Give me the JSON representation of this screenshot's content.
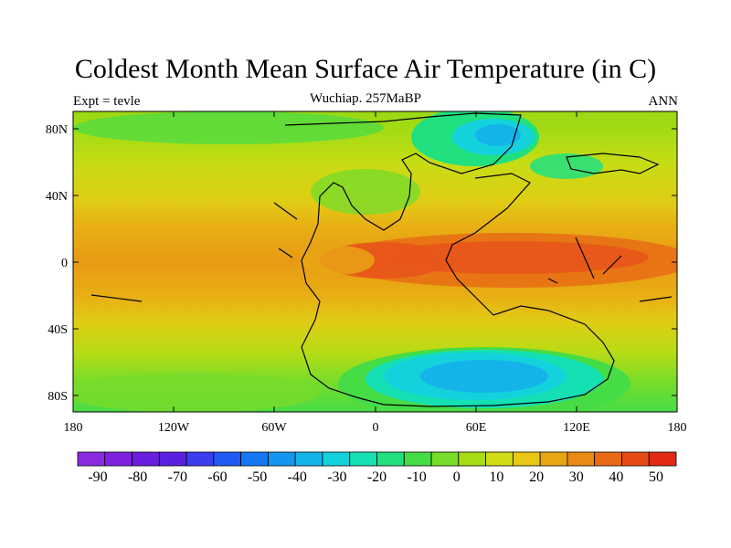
{
  "title": "Coldest Month Mean Surface Air Temperature (in C)",
  "left_label": "Expt = tevle",
  "center_label": "Wuchiap. 257MaBP",
  "right_label": "ANN",
  "lat_ticks": [
    "80N",
    "40N",
    "0",
    "40S",
    "80S"
  ],
  "lon_ticks": [
    "180",
    "120W",
    "60W",
    "0",
    "60E",
    "120E",
    "180"
  ],
  "colorbar": {
    "labels": [
      "-90",
      "-80",
      "-70",
      "-60",
      "-50",
      "-40",
      "-30",
      "-20",
      "-10",
      "0",
      "10",
      "20",
      "30",
      "40",
      "50"
    ],
    "colors": [
      "#8a2be2",
      "#7e22e0",
      "#6a1ee0",
      "#5a20e0",
      "#3c3cf0",
      "#1f5af5",
      "#1478f5",
      "#1496f0",
      "#14b4ea",
      "#14d2dc",
      "#14e0b4",
      "#20e080",
      "#46dc46",
      "#78dc2a",
      "#a8dc14",
      "#d2dc14",
      "#e8c814",
      "#e8a614",
      "#e88a14",
      "#e86a14",
      "#e84a14",
      "#e02a14"
    ]
  },
  "map": {
    "type": "filled-contour",
    "variable": "Coldest Month Mean Surface Air Temperature",
    "units": "C",
    "lon_range": [
      -180,
      180
    ],
    "lat_range": [
      -90,
      90
    ]
  }
}
